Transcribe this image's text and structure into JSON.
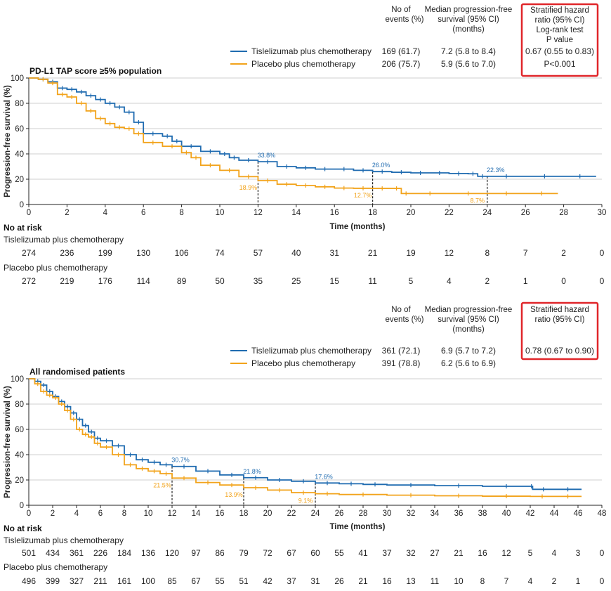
{
  "colors": {
    "tislelizumab": "#1f6bb0",
    "placebo": "#f2a31b",
    "highlight": "#e0262a"
  },
  "panels": [
    {
      "title": "PD-L1 TAP score ≥5% population",
      "table_headers": {
        "events": [
          "No of",
          "events (%)"
        ],
        "median": [
          "Median progression-free",
          "survival (95% CI)",
          "(months)"
        ],
        "hr": [
          "Stratified hazard",
          "ratio (95% CI)",
          "Log-rank test",
          "P value"
        ]
      },
      "legend": [
        {
          "name": "Tislelizumab plus chemotherapy",
          "events": "169 (61.7)",
          "median": "7.2 (5.8 to 8.4)",
          "hr": "0.67 (0.55 to 0.83)"
        },
        {
          "name": "Placebo plus chemotherapy",
          "events": "206 (75.7)",
          "median": "5.9 (5.6 to 7.0)",
          "hr": "P<0.001"
        }
      ],
      "xlabel": "Time (months)",
      "ylabel": "Progression-free survival (%)",
      "risk": {
        "title": "No at risk",
        "rows": [
          {
            "label": "Tislelizumab plus chemotherapy",
            "values": [
              "274",
              "236",
              "199",
              "130",
              "106",
              "74",
              "57",
              "40",
              "31",
              "21",
              "19",
              "12",
              "8",
              "7",
              "2",
              "0"
            ]
          },
          {
            "label": "Placebo plus chemotherapy",
            "values": [
              "272",
              "219",
              "176",
              "114",
              "89",
              "50",
              "35",
              "25",
              "15",
              "11",
              "5",
              "4",
              "2",
              "1",
              "0",
              "0"
            ]
          }
        ]
      },
      "annotations": [
        {
          "text": "33.8%",
          "series": 0
        },
        {
          "text": "26.0%",
          "series": 0
        },
        {
          "text": "22.3%",
          "series": 0
        },
        {
          "text": "18.9%",
          "series": 1
        },
        {
          "text": "12.7%",
          "series": 1
        },
        {
          "text": "8.7%",
          "series": 1
        }
      ]
    },
    {
      "title": "All randomised patients",
      "table_headers": {
        "events": [
          "No of",
          "events (%)"
        ],
        "median": [
          "Median progression-free",
          "survival (95% CI)",
          "(months)"
        ],
        "hr": [
          "Stratified hazard",
          "ratio (95% CI)"
        ]
      },
      "legend": [
        {
          "name": "Tislelizumab plus chemotherapy",
          "events": "361 (72.1)",
          "median": "6.9 (5.7 to 7.2)",
          "hr": "0.78 (0.67 to 0.90)"
        },
        {
          "name": "Placebo plus chemotherapy",
          "events": "391 (78.8)",
          "median": "6.2 (5.6 to 6.9)",
          "hr": ""
        }
      ],
      "xlabel": "Time (months)",
      "ylabel": "Progression-free survival (%)",
      "risk": {
        "title": "No at risk",
        "rows": [
          {
            "label": "Tislelizumab plus chemotherapy",
            "values": [
              "501",
              "434",
              "361",
              "226",
              "184",
              "136",
              "120",
              "97",
              "86",
              "79",
              "72",
              "67",
              "60",
              "55",
              "41",
              "37",
              "32",
              "27",
              "21",
              "16",
              "12",
              "5",
              "4",
              "3",
              "0"
            ]
          },
          {
            "label": "Placebo plus chemotherapy",
            "values": [
              "496",
              "399",
              "327",
              "211",
              "161",
              "100",
              "85",
              "67",
              "55",
              "51",
              "42",
              "37",
              "31",
              "26",
              "21",
              "16",
              "13",
              "11",
              "10",
              "8",
              "7",
              "4",
              "2",
              "1",
              "0"
            ]
          }
        ]
      },
      "annotations": [
        {
          "text": "30.7%",
          "series": 0
        },
        {
          "text": "21.8%",
          "series": 0
        },
        {
          "text": "17.6%",
          "series": 0
        },
        {
          "text": "21.5%",
          "series": 1
        },
        {
          "text": "13.9%",
          "series": 1
        },
        {
          "text": "9.1%",
          "series": 1
        }
      ]
    }
  ],
  "chart_data": [
    {
      "type": "line",
      "title": "PD-L1 TAP score ≥5% population",
      "xlabel": "Time (months)",
      "ylabel": "Progression-free survival (%)",
      "xlim": [
        0,
        30
      ],
      "ylim": [
        0,
        100
      ],
      "xticks": [
        0,
        2,
        4,
        6,
        8,
        10,
        12,
        14,
        16,
        18,
        20,
        22,
        24,
        26,
        28,
        30
      ],
      "yticks": [
        0,
        20,
        40,
        60,
        80,
        100
      ],
      "landmarks": [
        12,
        18,
        24
      ],
      "series": [
        {
          "name": "Tislelizumab plus chemotherapy",
          "x": [
            0,
            0.5,
            1,
            1.5,
            2,
            2.5,
            3,
            3.5,
            4,
            4.5,
            5,
            5.5,
            6,
            7,
            7.5,
            8,
            9,
            10,
            10.5,
            11,
            12,
            13,
            14,
            15,
            16,
            17,
            18,
            19,
            20,
            21,
            22,
            23,
            23.5,
            24,
            26,
            28,
            29.7
          ],
          "y": [
            100,
            99,
            97,
            92,
            91,
            89,
            86,
            83,
            80,
            77,
            73,
            65,
            56,
            54,
            50,
            46,
            42,
            40,
            37,
            35,
            33.8,
            30,
            29,
            28,
            28,
            27,
            26,
            25.5,
            25,
            25,
            24.5,
            24.3,
            22.3,
            22.3,
            22.3,
            22.3,
            22.3
          ]
        },
        {
          "name": "Placebo plus chemotherapy",
          "x": [
            0,
            0.5,
            1,
            1.5,
            2,
            2.5,
            3,
            3.5,
            4,
            4.5,
            5,
            5.5,
            6,
            7,
            8,
            8.5,
            9,
            10,
            11,
            12,
            13,
            14,
            15,
            16,
            17,
            18,
            19,
            19.5,
            20,
            22,
            24,
            26,
            27.7
          ],
          "y": [
            100,
            99,
            96,
            87,
            85,
            80,
            74,
            68,
            64,
            61,
            60,
            56,
            49,
            46,
            41,
            37,
            31,
            27,
            22,
            18.9,
            16,
            15,
            14,
            13,
            12.8,
            12.7,
            12.7,
            8.7,
            8.7,
            8.7,
            8.7,
            8.7,
            8.7
          ]
        }
      ]
    },
    {
      "type": "line",
      "title": "All randomised patients",
      "xlabel": "Time (months)",
      "ylabel": "Progression-free survival (%)",
      "xlim": [
        0,
        48
      ],
      "ylim": [
        0,
        100
      ],
      "xticks": [
        0,
        2,
        4,
        6,
        8,
        10,
        12,
        14,
        16,
        18,
        20,
        22,
        24,
        26,
        28,
        30,
        32,
        34,
        36,
        38,
        40,
        42,
        44,
        46,
        48
      ],
      "yticks": [
        0,
        20,
        40,
        60,
        80,
        100
      ],
      "landmarks": [
        12,
        18,
        24
      ],
      "series": [
        {
          "name": "Tislelizumab plus chemotherapy",
          "x": [
            0,
            0.5,
            1,
            1.5,
            2,
            2.5,
            3,
            3.5,
            4,
            4.5,
            5,
            5.5,
            6,
            7,
            8,
            9,
            10,
            11,
            12,
            14,
            16,
            18,
            20,
            22,
            24,
            26,
            28,
            30,
            34,
            38,
            42,
            42.2,
            44,
            46.3
          ],
          "y": [
            100,
            98,
            95,
            90,
            86,
            82,
            78,
            73,
            68,
            63,
            58,
            53,
            51,
            47,
            40,
            36,
            34,
            32,
            30.7,
            27,
            24,
            21.8,
            20,
            19,
            17.6,
            17,
            16.5,
            16,
            15.5,
            15,
            15,
            12.6,
            12.6,
            12.6
          ]
        },
        {
          "name": "Placebo plus chemotherapy",
          "x": [
            0,
            0.5,
            1,
            1.5,
            2,
            2.5,
            3,
            3.5,
            4,
            4.5,
            5,
            5.5,
            6,
            7,
            8,
            9,
            10,
            11,
            12,
            14,
            16,
            18,
            20,
            22,
            24,
            26,
            30,
            34,
            38,
            42,
            44,
            46.3
          ],
          "y": [
            100,
            96,
            90,
            87,
            85,
            80,
            75,
            68,
            60,
            56,
            54,
            49,
            46,
            40,
            32,
            29,
            27,
            25,
            21.5,
            18,
            16,
            13.9,
            12,
            10,
            9.1,
            8.5,
            8,
            7.5,
            7.2,
            7,
            7,
            7
          ]
        }
      ]
    }
  ]
}
